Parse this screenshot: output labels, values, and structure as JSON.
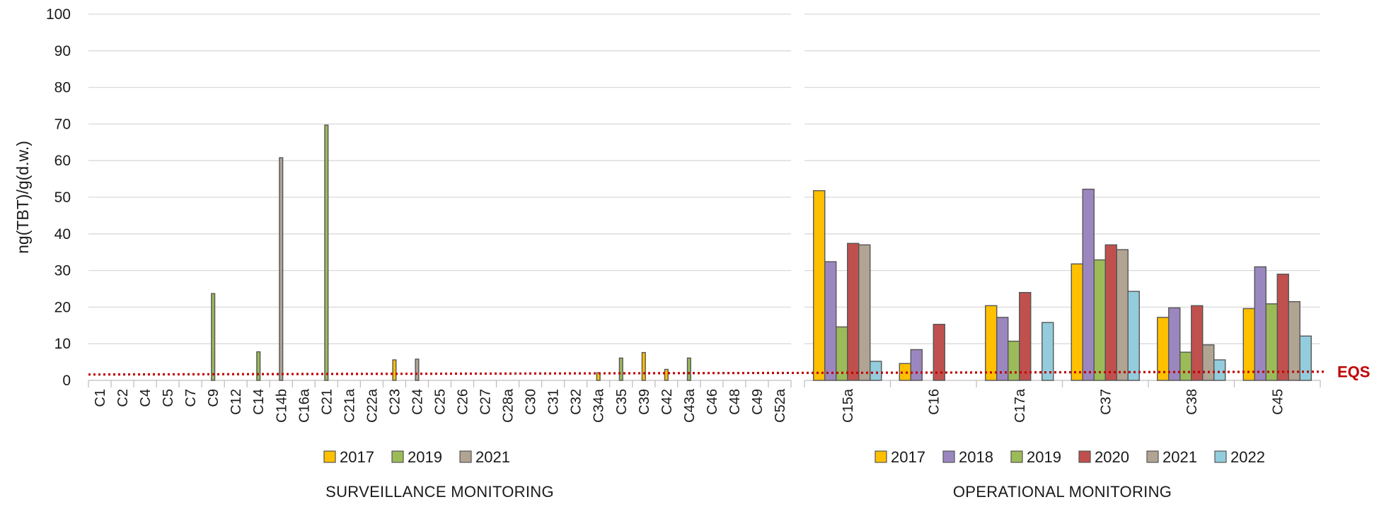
{
  "chart_data": {
    "type": "bar",
    "ylabel": "ng(TBT)/g(d.w.)",
    "ylim": [
      0,
      100
    ],
    "yticks": [
      0,
      10,
      20,
      30,
      40,
      50,
      60,
      70,
      80,
      90,
      100
    ],
    "grid": true,
    "reference_line": {
      "label": "EQS",
      "value": 1.6,
      "color": "#c00000",
      "style": "dotted"
    },
    "panels": [
      {
        "title": "SURVEILLANCE MONITORING",
        "legend_position": "bottom",
        "categories": [
          "C1",
          "C2",
          "C4",
          "C5",
          "C7",
          "C9",
          "C12",
          "C14",
          "C14b",
          "C16a",
          "C21",
          "C21a",
          "C22a",
          "C23",
          "C24",
          "C25",
          "C26",
          "C27",
          "C28a",
          "C30",
          "C31",
          "C32",
          "C34a",
          "C35",
          "C39",
          "C42",
          "C43a",
          "C46",
          "C48",
          "C49",
          "C52a"
        ],
        "series": [
          {
            "name": "2017",
            "color": "#ffc000",
            "values": [
              null,
              null,
              null,
              null,
              null,
              null,
              null,
              null,
              null,
              null,
              null,
              null,
              null,
              5.6,
              null,
              null,
              null,
              null,
              null,
              null,
              null,
              null,
              2.1,
              null,
              7.6,
              3.0,
              null,
              null,
              null,
              null,
              null
            ]
          },
          {
            "name": "2019",
            "color": "#9bbb59",
            "values": [
              null,
              null,
              null,
              null,
              null,
              23.7,
              null,
              7.8,
              null,
              null,
              69.7,
              null,
              null,
              null,
              null,
              null,
              null,
              null,
              null,
              null,
              null,
              null,
              null,
              6.1,
              null,
              null,
              6.1,
              null,
              null,
              null,
              null
            ]
          },
          {
            "name": "2021",
            "color": "#b1a493",
            "values": [
              null,
              null,
              null,
              null,
              null,
              null,
              null,
              null,
              60.8,
              null,
              null,
              null,
              null,
              null,
              5.8,
              null,
              null,
              null,
              null,
              null,
              null,
              null,
              null,
              null,
              null,
              null,
              null,
              null,
              null,
              null,
              null
            ]
          }
        ]
      },
      {
        "title": "OPERATIONAL MONITORING",
        "legend_position": "bottom",
        "categories": [
          "C15a",
          "C16",
          "C17a",
          "C37",
          "C38",
          "C45"
        ],
        "series": [
          {
            "name": "2017",
            "color": "#ffc000",
            "values": [
              51.8,
              4.6,
              20.4,
              31.8,
              17.2,
              19.6
            ]
          },
          {
            "name": "2018",
            "color": "#9b87c0",
            "values": [
              32.4,
              8.4,
              17.2,
              52.2,
              19.8,
              31.0
            ]
          },
          {
            "name": "2019",
            "color": "#9bbb59",
            "values": [
              14.6,
              null,
              10.7,
              32.9,
              7.7,
              20.9
            ]
          },
          {
            "name": "2020",
            "color": "#c0504d",
            "values": [
              37.4,
              15.3,
              24.0,
              37.0,
              20.4,
              29.0
            ]
          },
          {
            "name": "2021",
            "color": "#b1a493",
            "values": [
              37.0,
              null,
              null,
              35.7,
              9.7,
              21.5
            ]
          },
          {
            "name": "2022",
            "color": "#93cddd",
            "values": [
              5.2,
              null,
              15.8,
              24.3,
              5.6,
              12.1
            ]
          }
        ]
      }
    ]
  }
}
